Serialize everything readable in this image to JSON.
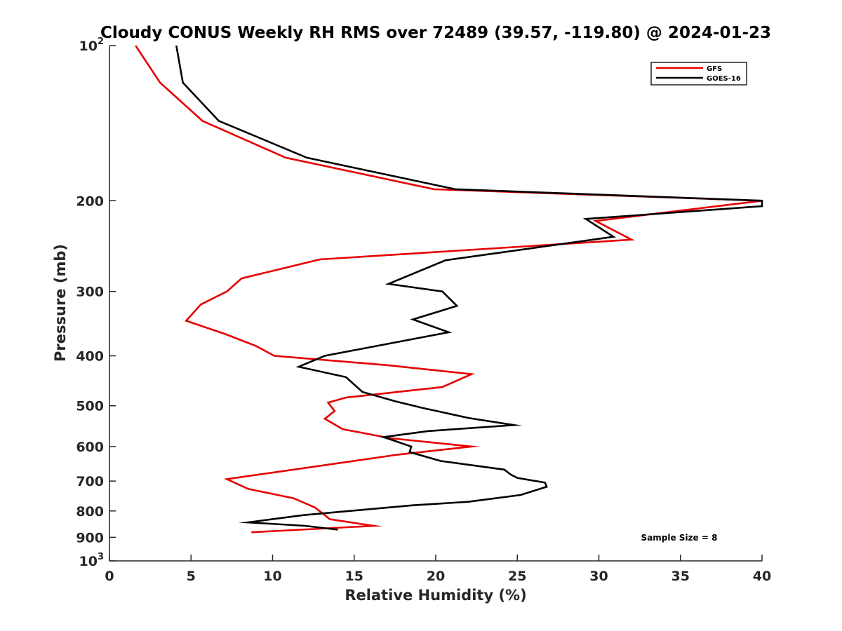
{
  "chart_data": {
    "type": "line",
    "title": "Cloudy CONUS Weekly RH RMS over 72489 (39.57, -119.80) @ 2024-01-23",
    "xlabel": "Relative Humidity (%)",
    "ylabel": "Pressure (mb)",
    "xlim": [
      0,
      40
    ],
    "ylim": [
      100,
      1000
    ],
    "y_scale": "log",
    "y_reversed": true,
    "grid": false,
    "x_ticks": [
      "0",
      "5",
      "10",
      "15",
      "20",
      "25",
      "30",
      "35",
      "40"
    ],
    "y_ticks": [
      {
        "value": 100,
        "base": "10",
        "exp": "2"
      },
      {
        "value": 200,
        "label": "200"
      },
      {
        "value": 300,
        "label": "300"
      },
      {
        "value": 400,
        "label": "400"
      },
      {
        "value": 500,
        "label": "500"
      },
      {
        "value": 600,
        "label": "600"
      },
      {
        "value": 700,
        "label": "700"
      },
      {
        "value": 800,
        "label": "800"
      },
      {
        "value": 900,
        "label": "900"
      },
      {
        "value": 1000,
        "base": "10",
        "exp": "3"
      }
    ],
    "legend_position": "top-right",
    "annotation": "Sample Size = 8",
    "series": [
      {
        "name": "GFS",
        "color": "#e60000",
        "points": [
          [
            1.6,
            100
          ],
          [
            3.1,
            118
          ],
          [
            5.7,
            140
          ],
          [
            10.8,
            165
          ],
          [
            19.9,
            190
          ],
          [
            40.0,
            200
          ],
          [
            29.8,
            219
          ],
          [
            32.0,
            238
          ],
          [
            12.9,
            260
          ],
          [
            8.1,
            283
          ],
          [
            7.2,
            300
          ],
          [
            5.6,
            318
          ],
          [
            4.7,
            342
          ],
          [
            7.1,
            363
          ],
          [
            9.0,
            383
          ],
          [
            10.1,
            400
          ],
          [
            17.0,
            417
          ],
          [
            22.2,
            434
          ],
          [
            20.4,
            460
          ],
          [
            14.5,
            482
          ],
          [
            13.4,
            493
          ],
          [
            13.8,
            512
          ],
          [
            13.2,
            530
          ],
          [
            14.3,
            555
          ],
          [
            17.2,
            578
          ],
          [
            22.2,
            600
          ],
          [
            17.7,
            622
          ],
          [
            7.2,
            694
          ],
          [
            8.5,
            725
          ],
          [
            11.3,
            756
          ],
          [
            12.6,
            788
          ],
          [
            13.2,
            815
          ],
          [
            13.5,
            830
          ],
          [
            16.2,
            855
          ],
          [
            8.7,
            880
          ]
        ]
      },
      {
        "name": "GOES-16",
        "color": "#000000",
        "points": [
          [
            4.1,
            100
          ],
          [
            4.5,
            118
          ],
          [
            6.7,
            140
          ],
          [
            12.1,
            165
          ],
          [
            21.2,
            190
          ],
          [
            40.0,
            200
          ],
          [
            40.0,
            205
          ],
          [
            29.2,
            217
          ],
          [
            30.9,
            235
          ],
          [
            20.6,
            261
          ],
          [
            17.1,
            290
          ],
          [
            20.4,
            300
          ],
          [
            21.3,
            320
          ],
          [
            18.6,
            340
          ],
          [
            20.8,
            360
          ],
          [
            13.2,
            400
          ],
          [
            11.6,
            420
          ],
          [
            14.5,
            440
          ],
          [
            15.5,
            470
          ],
          [
            17.5,
            490
          ],
          [
            19.2,
            505
          ],
          [
            22.0,
            528
          ],
          [
            24.8,
            545
          ],
          [
            19.5,
            560
          ],
          [
            16.8,
            575
          ],
          [
            18.5,
            600
          ],
          [
            18.4,
            615
          ],
          [
            20.3,
            640
          ],
          [
            24.2,
            665
          ],
          [
            24.6,
            680
          ],
          [
            25.0,
            690
          ],
          [
            26.7,
            705
          ],
          [
            26.8,
            718
          ],
          [
            25.2,
            745
          ],
          [
            22.0,
            768
          ],
          [
            18.6,
            780
          ],
          [
            11.9,
            815
          ],
          [
            8.5,
            842
          ],
          [
            12.0,
            855
          ],
          [
            14.0,
            870
          ]
        ]
      }
    ]
  }
}
